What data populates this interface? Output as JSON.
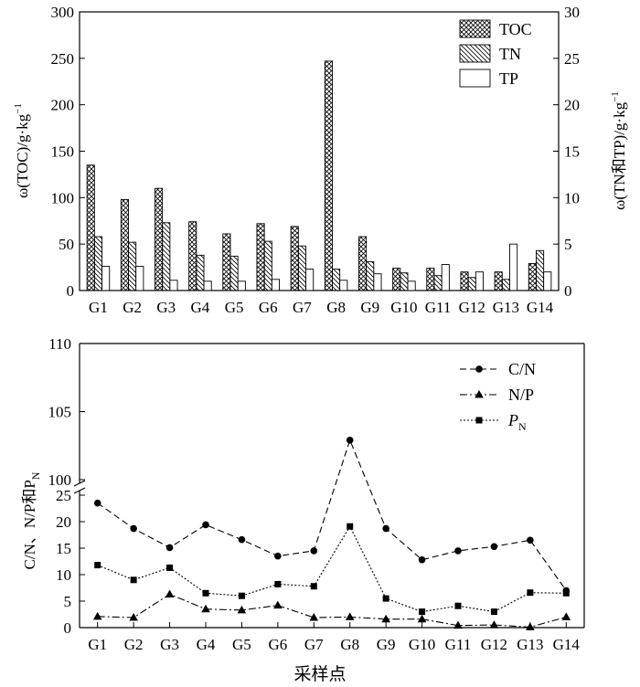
{
  "chart_data": [
    {
      "type": "bar",
      "categories": [
        "G1",
        "G2",
        "G3",
        "G4",
        "G5",
        "G6",
        "G7",
        "G8",
        "G9",
        "G10",
        "G11",
        "G12",
        "G13",
        "G14"
      ],
      "left_axis": {
        "label": "ω(TOC)/g·kg",
        "label_sup": "−1",
        "ylim": [
          0,
          300
        ],
        "ticks": [
          "0",
          "50",
          "100",
          "150",
          "200",
          "250",
          "300"
        ]
      },
      "right_axis": {
        "label": "ω(TN和TP)/g·kg",
        "label_sup": "−1",
        "ylim": [
          0,
          30
        ],
        "ticks": [
          "0",
          "5",
          "10",
          "15",
          "20",
          "25",
          "30"
        ]
      },
      "series": [
        {
          "name": "TOC",
          "axis": "left",
          "pattern": "crosshatch",
          "values": [
            135,
            98,
            110,
            74,
            61,
            72,
            69,
            247,
            58,
            24,
            24,
            20,
            20,
            29
          ]
        },
        {
          "name": "TN",
          "axis": "right",
          "pattern": "diagonal",
          "values": [
            5.8,
            5.2,
            7.3,
            3.8,
            3.7,
            5.3,
            4.8,
            2.3,
            3.1,
            1.9,
            1.6,
            1.4,
            1.2,
            4.3
          ]
        },
        {
          "name": "TP",
          "axis": "right",
          "pattern": "none",
          "values": [
            2.6,
            2.6,
            1.1,
            1.0,
            1.0,
            1.2,
            2.3,
            1.1,
            1.8,
            1.0,
            2.8,
            2.0,
            5.0,
            2.0
          ]
        }
      ],
      "legend": "top-right"
    },
    {
      "type": "line",
      "categories": [
        "G1",
        "G2",
        "G3",
        "G4",
        "G5",
        "G6",
        "G7",
        "G8",
        "G9",
        "G10",
        "G11",
        "G12",
        "G13",
        "G14"
      ],
      "xlabel": "采样点",
      "ylabel": "C/N、N/P和P",
      "ylabel_sub": "N",
      "axis_break": {
        "lower": [
          0,
          25
        ],
        "upper": [
          100,
          110
        ]
      },
      "yticks": [
        "0",
        "5",
        "10",
        "15",
        "20",
        "25",
        "100",
        "105",
        "110"
      ],
      "series": [
        {
          "name": "C/N",
          "marker": "circle",
          "dash": "dashed",
          "values": [
            23.5,
            18.7,
            15.1,
            19.4,
            16.6,
            13.5,
            14.5,
            102.9,
            18.7,
            12.8,
            14.5,
            15.3,
            16.5,
            7.0
          ]
        },
        {
          "name": "N/P",
          "marker": "triangle",
          "dash": "dashdot",
          "values": [
            2.1,
            1.9,
            6.3,
            3.5,
            3.3,
            4.2,
            1.9,
            2.0,
            1.6,
            1.6,
            0.4,
            0.5,
            0.1,
            2.0
          ]
        },
        {
          "name": "P",
          "name_sub": "N",
          "marker": "square",
          "dash": "dotted",
          "values": [
            11.8,
            9.0,
            11.3,
            6.5,
            6.0,
            8.2,
            7.8,
            19.1,
            5.5,
            3.0,
            4.1,
            3.0,
            6.6,
            6.5
          ]
        }
      ],
      "legend": "top-right"
    }
  ]
}
